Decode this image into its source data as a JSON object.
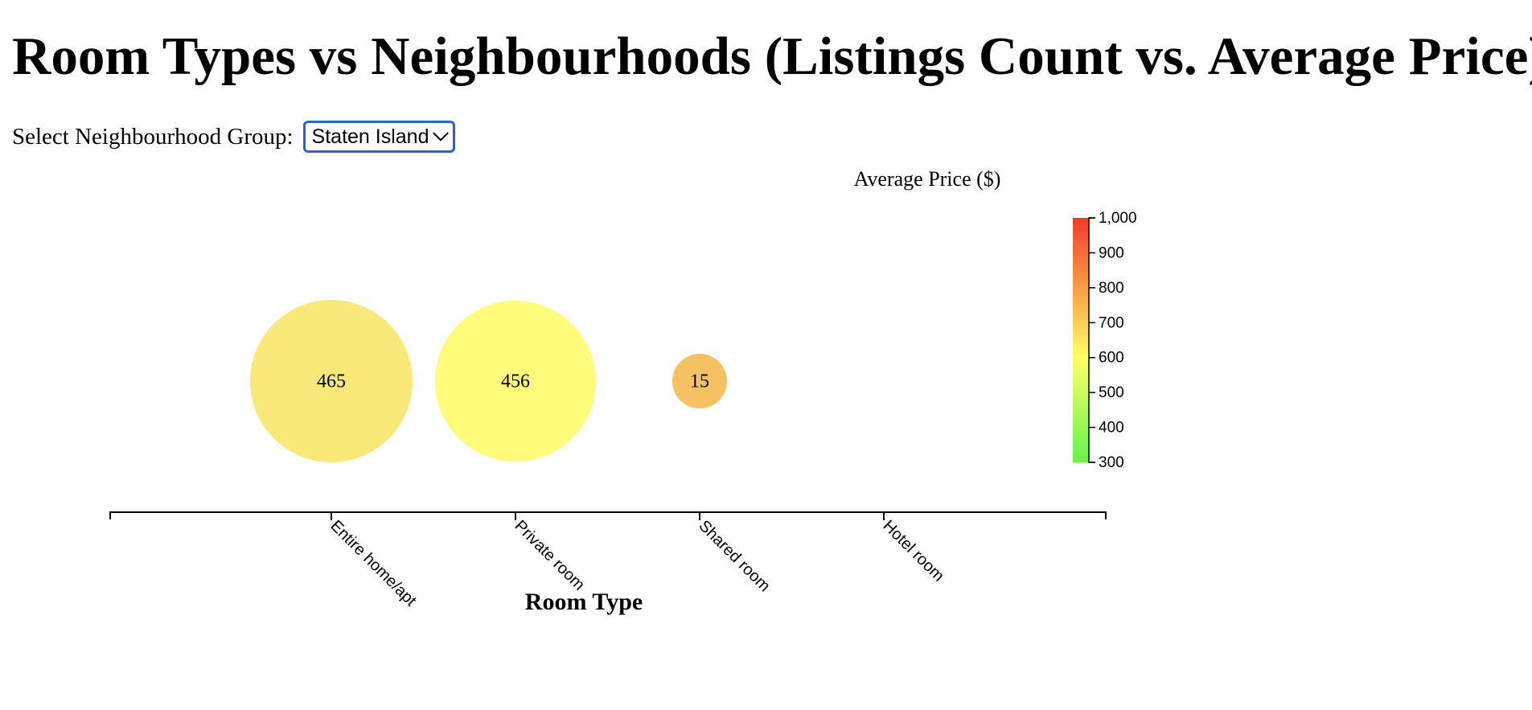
{
  "page": {
    "title": "Room Types vs Neighbourhoods (Listings Count vs. Average Price)",
    "select_label": "Select Neighbourhood Group:",
    "select_value": "Staten Island"
  },
  "chart_data": {
    "type": "scatter",
    "x_categories": [
      "Entire home/apt",
      "Private room",
      "Shared room",
      "Hotel room"
    ],
    "xlabel": "Room Type",
    "points": [
      {
        "room_type": "Entire home/apt",
        "count": 465,
        "avg_price": 690
      },
      {
        "room_type": "Private room",
        "count": 456,
        "avg_price": 640
      },
      {
        "room_type": "Shared room",
        "count": 15,
        "avg_price": 760
      }
    ],
    "color_legend": {
      "title": "Average Price ($)",
      "domain": [
        300,
        1000
      ],
      "ticks": [
        "1,000",
        "900",
        "800",
        "700",
        "600",
        "500",
        "400",
        "300"
      ],
      "tick_values": [
        1000,
        900,
        800,
        700,
        600,
        500,
        400,
        300
      ],
      "colors": {
        "low": "#66f24d",
        "mid": "#ffff66",
        "high": "#f03c28"
      }
    },
    "bubble_colors": [
      "#fae979",
      "#fffb7b",
      "#f5c162"
    ]
  }
}
